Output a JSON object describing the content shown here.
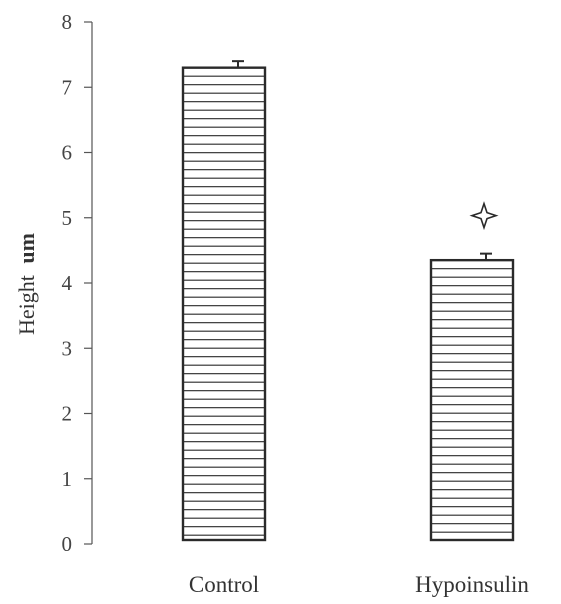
{
  "chart_data": {
    "type": "bar",
    "categories": [
      "Control",
      "Hypoinsulin"
    ],
    "values": [
      7.3,
      4.35
    ],
    "errors": [
      0.1,
      0.1
    ],
    "ylabel": "Height",
    "ylabel_unit": "um",
    "ylim": [
      0,
      8
    ],
    "yticks": [
      "0",
      "1",
      "2",
      "3",
      "4",
      "5",
      "6",
      "7",
      "8"
    ],
    "grid": false,
    "bar_fill": "horizontal-hatch",
    "bar_color": "#2a2a2a",
    "significance": [
      false,
      true
    ]
  }
}
